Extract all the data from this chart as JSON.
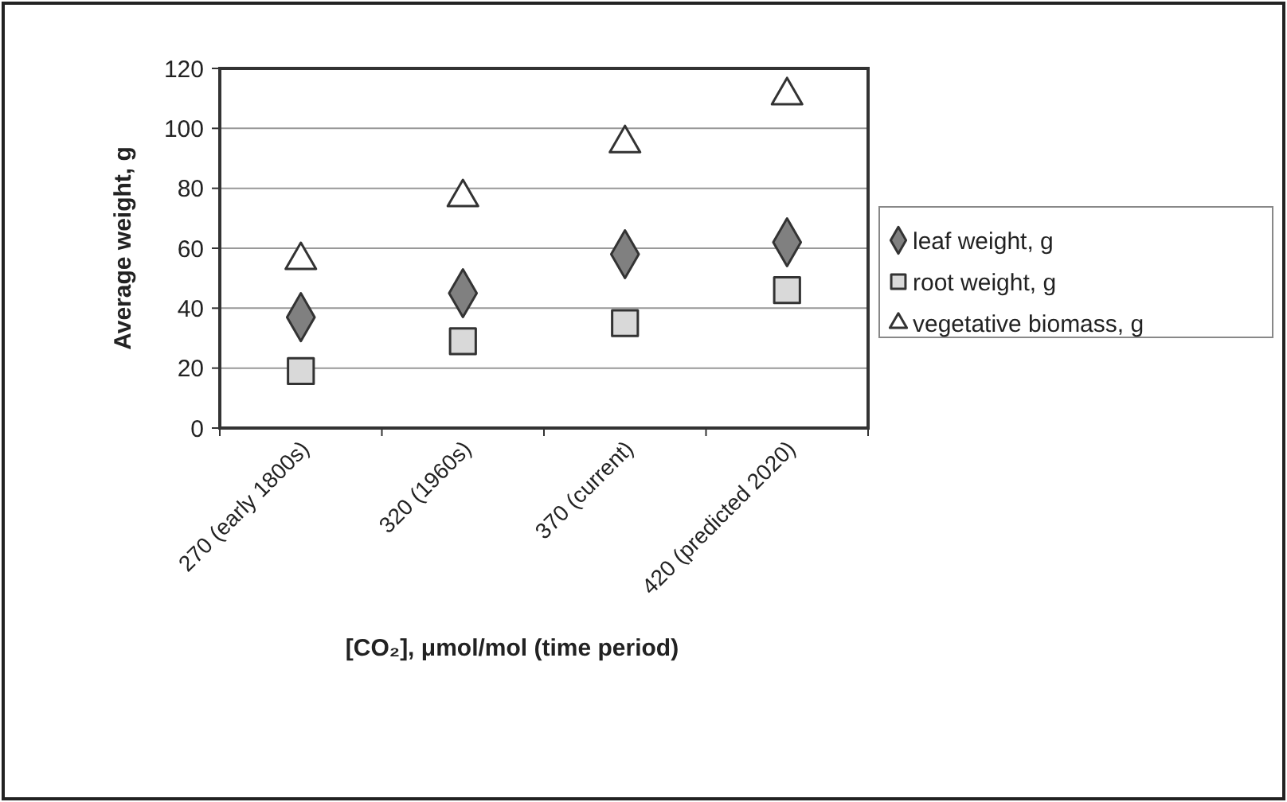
{
  "chart_data": {
    "type": "scatter",
    "xlabel": "[CO₂], μmol/mol (time period)",
    "ylabel": "Average weight, g",
    "categories": [
      "270 (early 1800s)",
      "320 (1960s)",
      "370 (current)",
      "420 (predicted 2020)"
    ],
    "ylim": [
      0,
      120
    ],
    "yticks": [
      0,
      20,
      40,
      60,
      80,
      100,
      120
    ],
    "grid": "y",
    "legend": "right",
    "series": [
      {
        "name": "leaf weight, g",
        "color": "#808080",
        "marker": "diamond",
        "values": [
          37,
          45,
          58,
          62
        ]
      },
      {
        "name": "root weight, g",
        "color": "#d9d9d9",
        "marker": "square",
        "values": [
          19,
          29,
          35,
          46
        ]
      },
      {
        "name": "vegetative biomass, g",
        "color": "#ffffff",
        "marker": "triangle",
        "values": [
          56,
          77,
          95,
          111
        ]
      }
    ]
  }
}
